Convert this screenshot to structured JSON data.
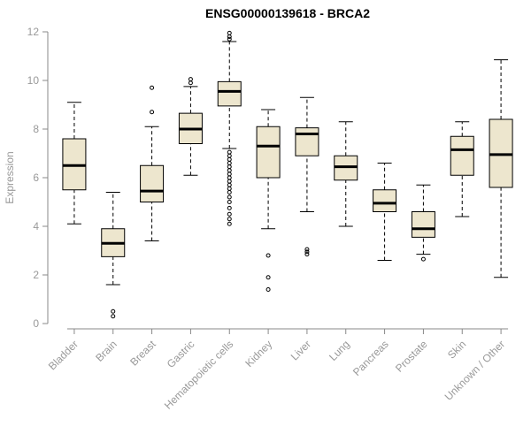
{
  "chart_data": {
    "type": "boxplot",
    "title": "ENSG00000139618 - BRCA2",
    "xlabel": "",
    "ylabel": "Expression",
    "ylim": [
      0,
      12
    ],
    "yticks": [
      0,
      2,
      4,
      6,
      8,
      10,
      12
    ],
    "grid": false,
    "legend": "none",
    "categories": [
      "Bladder",
      "Brain",
      "Breast",
      "Gastric",
      "Hematopoietic cells",
      "Kidney",
      "Liver",
      "Lung",
      "Pancreas",
      "Prostate",
      "Skin",
      "Unknown / Other"
    ],
    "series": [
      {
        "name": "Bladder",
        "whisker_low": 4.1,
        "q1": 5.5,
        "median": 6.5,
        "q3": 7.6,
        "whisker_high": 9.1,
        "outliers": []
      },
      {
        "name": "Brain",
        "whisker_low": 1.6,
        "q1": 2.75,
        "median": 3.3,
        "q3": 3.9,
        "whisker_high": 5.4,
        "outliers": [
          0.3,
          0.5
        ]
      },
      {
        "name": "Breast",
        "whisker_low": 3.4,
        "q1": 5.0,
        "median": 5.45,
        "q3": 6.5,
        "whisker_high": 8.1,
        "outliers": [
          8.7,
          9.7
        ]
      },
      {
        "name": "Gastric",
        "whisker_low": 6.1,
        "q1": 7.4,
        "median": 8.0,
        "q3": 8.65,
        "whisker_high": 9.75,
        "outliers": [
          9.9,
          10.05
        ]
      },
      {
        "name": "Hematopoietic cells",
        "whisker_low": 7.2,
        "q1": 8.95,
        "median": 9.55,
        "q3": 9.95,
        "whisker_high": 11.6,
        "outliers": [
          11.95,
          11.8,
          11.7,
          7.05,
          6.9,
          6.75,
          6.6,
          6.45,
          6.3,
          6.15,
          6.0,
          5.85,
          5.7,
          5.55,
          5.4,
          5.2,
          5.0,
          4.75,
          4.5,
          4.3,
          4.1
        ]
      },
      {
        "name": "Kidney",
        "whisker_low": 3.9,
        "q1": 6.0,
        "median": 7.3,
        "q3": 8.1,
        "whisker_high": 8.8,
        "outliers": [
          2.8,
          1.9,
          1.4
        ]
      },
      {
        "name": "Liver",
        "whisker_low": 4.6,
        "q1": 6.9,
        "median": 7.8,
        "q3": 8.05,
        "whisker_high": 9.3,
        "outliers": [
          3.05,
          2.95,
          2.85
        ]
      },
      {
        "name": "Lung",
        "whisker_low": 4.0,
        "q1": 5.9,
        "median": 6.45,
        "q3": 6.9,
        "whisker_high": 8.3,
        "outliers": []
      },
      {
        "name": "Pancreas",
        "whisker_low": 2.6,
        "q1": 4.6,
        "median": 4.95,
        "q3": 5.5,
        "whisker_high": 6.6,
        "outliers": []
      },
      {
        "name": "Prostate",
        "whisker_low": 2.85,
        "q1": 3.55,
        "median": 3.9,
        "q3": 4.6,
        "whisker_high": 5.7,
        "outliers": [
          2.65
        ]
      },
      {
        "name": "Skin",
        "whisker_low": 4.4,
        "q1": 6.1,
        "median": 7.15,
        "q3": 7.7,
        "whisker_high": 8.3,
        "outliers": []
      },
      {
        "name": "Unknown / Other",
        "whisker_low": 1.9,
        "q1": 5.6,
        "median": 6.95,
        "q3": 8.4,
        "whisker_high": 10.85,
        "outliers": []
      }
    ],
    "colors": {
      "box_fill": "#EDE6CE",
      "box_stroke": "#000000",
      "median": "#000000",
      "whisker": "#000000",
      "axis": "#888888",
      "tick_label": "#999999",
      "title": "#000000",
      "background": "#FFFFFF"
    }
  }
}
